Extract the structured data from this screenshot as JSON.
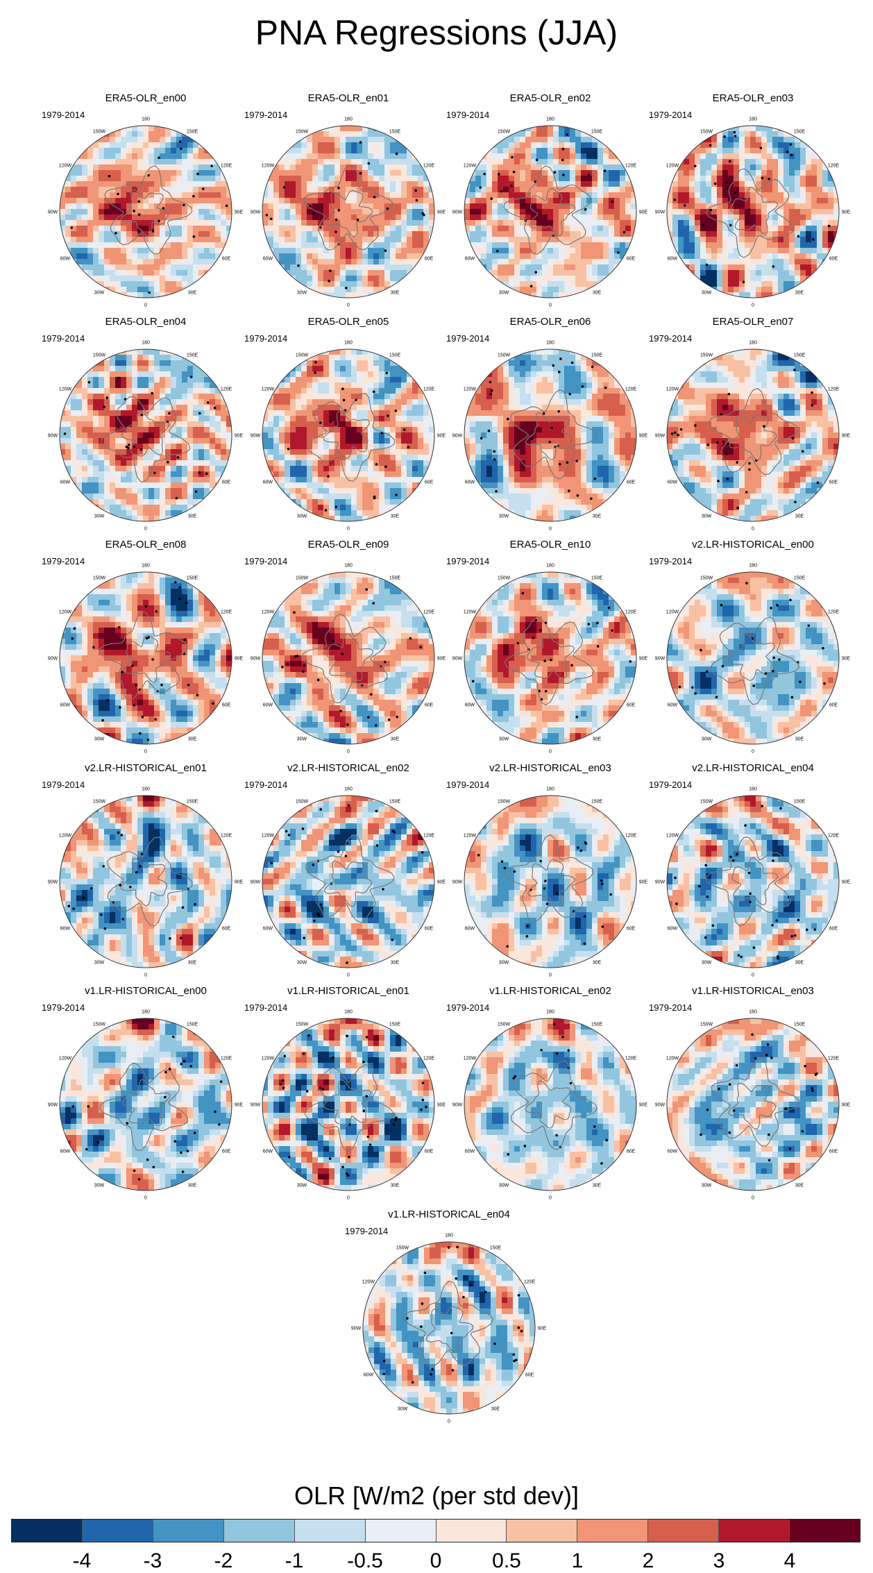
{
  "figure": {
    "title": "PNA Regressions (JJA)"
  },
  "chart_data": {
    "type": "polar_stereographic_map_panels",
    "title": "PNA Regressions (JJA)",
    "variable": "OLR",
    "period": "1979-2014",
    "longitude_labels": [
      "180",
      "150E",
      "120E",
      "90E",
      "60E",
      "30E",
      "0",
      "30W",
      "60W",
      "90W",
      "120W",
      "150W"
    ],
    "panels": [
      {
        "title": "ERA5-OLR_en00",
        "period": "1979-2014",
        "pattern": "era5"
      },
      {
        "title": "ERA5-OLR_en01",
        "period": "1979-2014",
        "pattern": "era5"
      },
      {
        "title": "ERA5-OLR_en02",
        "period": "1979-2014",
        "pattern": "era5"
      },
      {
        "title": "ERA5-OLR_en03",
        "period": "1979-2014",
        "pattern": "era5"
      },
      {
        "title": "ERA5-OLR_en04",
        "period": "1979-2014",
        "pattern": "era5"
      },
      {
        "title": "ERA5-OLR_en05",
        "period": "1979-2014",
        "pattern": "era5"
      },
      {
        "title": "ERA5-OLR_en06",
        "period": "1979-2014",
        "pattern": "era5"
      },
      {
        "title": "ERA5-OLR_en07",
        "period": "1979-2014",
        "pattern": "era5"
      },
      {
        "title": "ERA5-OLR_en08",
        "period": "1979-2014",
        "pattern": "era5"
      },
      {
        "title": "ERA5-OLR_en09",
        "period": "1979-2014",
        "pattern": "era5"
      },
      {
        "title": "ERA5-OLR_en10",
        "period": "1979-2014",
        "pattern": "era5"
      },
      {
        "title": "v2.LR-HISTORICAL_en00",
        "period": "1979-2014",
        "pattern": "model"
      },
      {
        "title": "v2.LR-HISTORICAL_en01",
        "period": "1979-2014",
        "pattern": "model"
      },
      {
        "title": "v2.LR-HISTORICAL_en02",
        "period": "1979-2014",
        "pattern": "model"
      },
      {
        "title": "v2.LR-HISTORICAL_en03",
        "period": "1979-2014",
        "pattern": "model"
      },
      {
        "title": "v2.LR-HISTORICAL_en04",
        "period": "1979-2014",
        "pattern": "model"
      },
      {
        "title": "v1.LR-HISTORICAL_en00",
        "period": "1979-2014",
        "pattern": "model"
      },
      {
        "title": "v1.LR-HISTORICAL_en01",
        "period": "1979-2014",
        "pattern": "model"
      },
      {
        "title": "v1.LR-HISTORICAL_en02",
        "period": "1979-2014",
        "pattern": "model"
      },
      {
        "title": "v1.LR-HISTORICAL_en03",
        "period": "1979-2014",
        "pattern": "model"
      },
      {
        "title": "v1.LR-HISTORICAL_en04",
        "period": "1979-2014",
        "pattern": "model"
      }
    ],
    "colorbar": {
      "title": "OLR [W/m2 (per std dev)]",
      "levels": [
        -4,
        -3,
        -2,
        -1,
        -0.5,
        0,
        0.5,
        1,
        2,
        3,
        4
      ],
      "tick_labels": [
        "-4",
        "-3",
        "-2",
        "-1",
        "-0.5",
        "0",
        "0.5",
        "1",
        "2",
        "3",
        "4"
      ],
      "colors": [
        "#053061",
        "#2166ac",
        "#4393c3",
        "#92c5de",
        "#c6dfee",
        "#e8eef4",
        "#fbe6dc",
        "#f8c1a3",
        "#f09575",
        "#d6604d",
        "#b2182b",
        "#67001f"
      ]
    }
  }
}
